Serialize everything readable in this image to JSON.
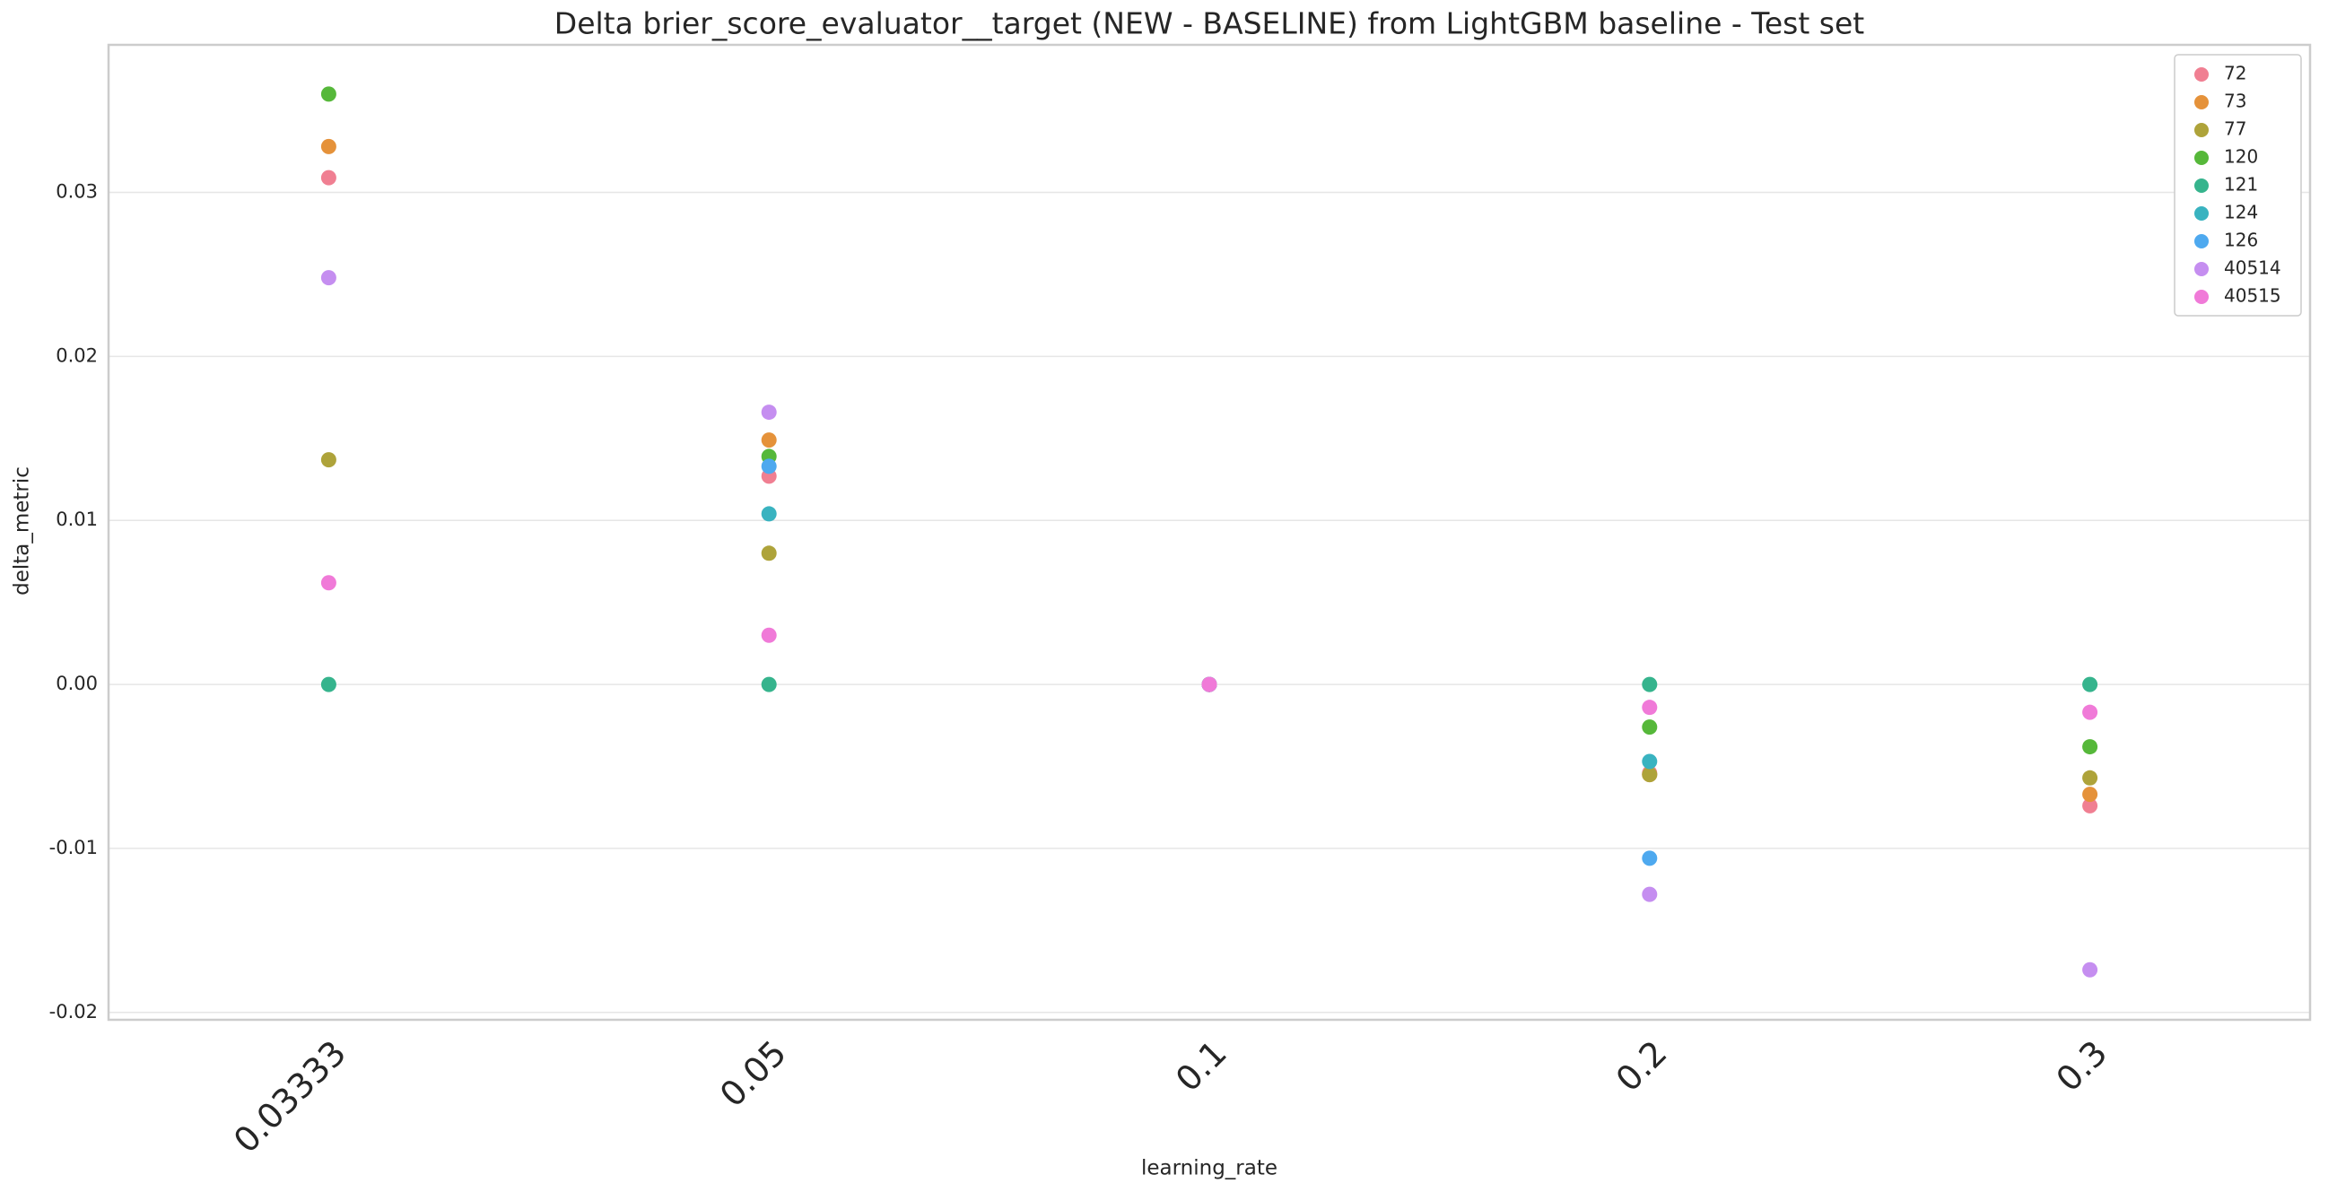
{
  "chart_data": {
    "type": "scatter",
    "title": "Delta brier_score_evaluator__target (NEW - BASELINE) from LightGBM baseline - Test set",
    "x_label": "learning_rate",
    "y_label": "delta_metric",
    "categories": [
      "0.03333",
      "0.05",
      "0.1",
      "0.2",
      "0.3"
    ],
    "series": [
      {
        "name": "72",
        "color": "#f07f92",
        "values": [
          0.0309,
          0.0127,
          0,
          -0.0054,
          -0.0074
        ]
      },
      {
        "name": "73",
        "color": "#e5923a",
        "values": [
          0.0328,
          0.0149,
          0,
          -0.0055,
          -0.0067
        ]
      },
      {
        "name": "77",
        "color": "#aea33a",
        "values": [
          0.0137,
          0.008,
          0,
          -0.0055,
          -0.0057
        ]
      },
      {
        "name": "120",
        "color": "#56b83a",
        "values": [
          0.036,
          0.0139,
          0,
          -0.0026,
          -0.0038
        ]
      },
      {
        "name": "121",
        "color": "#36b48d",
        "values": [
          0,
          0,
          0,
          0,
          0
        ]
      },
      {
        "name": "124",
        "color": "#39b3c0",
        "values": [
          null,
          0.0104,
          0,
          -0.0047,
          null
        ]
      },
      {
        "name": "126",
        "color": "#4ea9ef",
        "values": [
          null,
          0.0133,
          0,
          -0.0106,
          null
        ]
      },
      {
        "name": "40514",
        "color": "#c58ef0",
        "values": [
          0.0248,
          0.0166,
          0,
          -0.0128,
          -0.0174
        ]
      },
      {
        "name": "40515",
        "color": "#f07ad8",
        "values": [
          0.0062,
          0.003,
          0,
          -0.0014,
          -0.0017
        ]
      }
    ],
    "ylim": [
      -0.02045,
      0.039
    ],
    "yticks": [
      -0.02,
      -0.01,
      {
        "value": 0,
        "label": "0.00"
      },
      0.01,
      0.02,
      0.03
    ],
    "grid": true,
    "legend": "upper right"
  }
}
